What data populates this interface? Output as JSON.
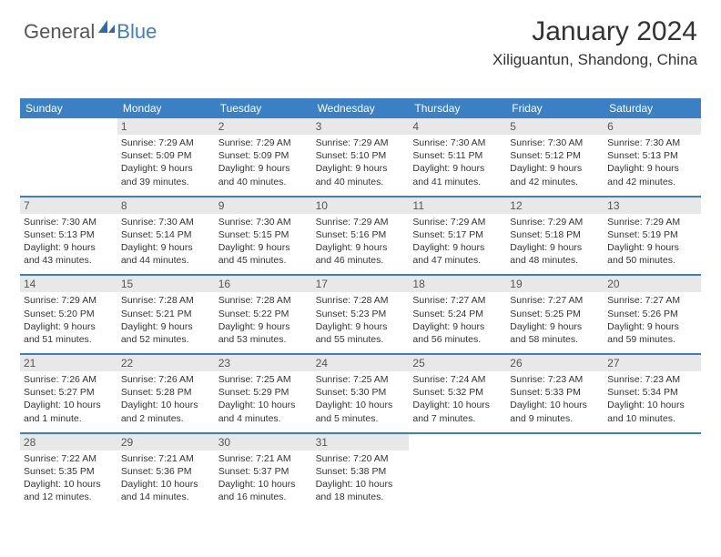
{
  "logo": {
    "general": "General",
    "blue": "Blue"
  },
  "title": "January 2024",
  "subtitle": "Xiliguantun, Shandong, China",
  "colors": {
    "header_bg": "#3b7fc4",
    "header_text": "#ffffff",
    "daynum_bg": "#e8e8e8",
    "text": "#333333",
    "logo_gray": "#555555",
    "logo_blue": "#3b7fc4"
  },
  "day_headers": [
    "Sunday",
    "Monday",
    "Tuesday",
    "Wednesday",
    "Thursday",
    "Friday",
    "Saturday"
  ],
  "start_offset": 1,
  "days": [
    {
      "n": 1,
      "sunrise": "7:29 AM",
      "sunset": "5:09 PM",
      "daylight": "9 hours and 39 minutes."
    },
    {
      "n": 2,
      "sunrise": "7:29 AM",
      "sunset": "5:09 PM",
      "daylight": "9 hours and 40 minutes."
    },
    {
      "n": 3,
      "sunrise": "7:29 AM",
      "sunset": "5:10 PM",
      "daylight": "9 hours and 40 minutes."
    },
    {
      "n": 4,
      "sunrise": "7:30 AM",
      "sunset": "5:11 PM",
      "daylight": "9 hours and 41 minutes."
    },
    {
      "n": 5,
      "sunrise": "7:30 AM",
      "sunset": "5:12 PM",
      "daylight": "9 hours and 42 minutes."
    },
    {
      "n": 6,
      "sunrise": "7:30 AM",
      "sunset": "5:13 PM",
      "daylight": "9 hours and 42 minutes."
    },
    {
      "n": 7,
      "sunrise": "7:30 AM",
      "sunset": "5:13 PM",
      "daylight": "9 hours and 43 minutes."
    },
    {
      "n": 8,
      "sunrise": "7:30 AM",
      "sunset": "5:14 PM",
      "daylight": "9 hours and 44 minutes."
    },
    {
      "n": 9,
      "sunrise": "7:30 AM",
      "sunset": "5:15 PM",
      "daylight": "9 hours and 45 minutes."
    },
    {
      "n": 10,
      "sunrise": "7:29 AM",
      "sunset": "5:16 PM",
      "daylight": "9 hours and 46 minutes."
    },
    {
      "n": 11,
      "sunrise": "7:29 AM",
      "sunset": "5:17 PM",
      "daylight": "9 hours and 47 minutes."
    },
    {
      "n": 12,
      "sunrise": "7:29 AM",
      "sunset": "5:18 PM",
      "daylight": "9 hours and 48 minutes."
    },
    {
      "n": 13,
      "sunrise": "7:29 AM",
      "sunset": "5:19 PM",
      "daylight": "9 hours and 50 minutes."
    },
    {
      "n": 14,
      "sunrise": "7:29 AM",
      "sunset": "5:20 PM",
      "daylight": "9 hours and 51 minutes."
    },
    {
      "n": 15,
      "sunrise": "7:28 AM",
      "sunset": "5:21 PM",
      "daylight": "9 hours and 52 minutes."
    },
    {
      "n": 16,
      "sunrise": "7:28 AM",
      "sunset": "5:22 PM",
      "daylight": "9 hours and 53 minutes."
    },
    {
      "n": 17,
      "sunrise": "7:28 AM",
      "sunset": "5:23 PM",
      "daylight": "9 hours and 55 minutes."
    },
    {
      "n": 18,
      "sunrise": "7:27 AM",
      "sunset": "5:24 PM",
      "daylight": "9 hours and 56 minutes."
    },
    {
      "n": 19,
      "sunrise": "7:27 AM",
      "sunset": "5:25 PM",
      "daylight": "9 hours and 58 minutes."
    },
    {
      "n": 20,
      "sunrise": "7:27 AM",
      "sunset": "5:26 PM",
      "daylight": "9 hours and 59 minutes."
    },
    {
      "n": 21,
      "sunrise": "7:26 AM",
      "sunset": "5:27 PM",
      "daylight": "10 hours and 1 minute."
    },
    {
      "n": 22,
      "sunrise": "7:26 AM",
      "sunset": "5:28 PM",
      "daylight": "10 hours and 2 minutes."
    },
    {
      "n": 23,
      "sunrise": "7:25 AM",
      "sunset": "5:29 PM",
      "daylight": "10 hours and 4 minutes."
    },
    {
      "n": 24,
      "sunrise": "7:25 AM",
      "sunset": "5:30 PM",
      "daylight": "10 hours and 5 minutes."
    },
    {
      "n": 25,
      "sunrise": "7:24 AM",
      "sunset": "5:32 PM",
      "daylight": "10 hours and 7 minutes."
    },
    {
      "n": 26,
      "sunrise": "7:23 AM",
      "sunset": "5:33 PM",
      "daylight": "10 hours and 9 minutes."
    },
    {
      "n": 27,
      "sunrise": "7:23 AM",
      "sunset": "5:34 PM",
      "daylight": "10 hours and 10 minutes."
    },
    {
      "n": 28,
      "sunrise": "7:22 AM",
      "sunset": "5:35 PM",
      "daylight": "10 hours and 12 minutes."
    },
    {
      "n": 29,
      "sunrise": "7:21 AM",
      "sunset": "5:36 PM",
      "daylight": "10 hours and 14 minutes."
    },
    {
      "n": 30,
      "sunrise": "7:21 AM",
      "sunset": "5:37 PM",
      "daylight": "10 hours and 16 minutes."
    },
    {
      "n": 31,
      "sunrise": "7:20 AM",
      "sunset": "5:38 PM",
      "daylight": "10 hours and 18 minutes."
    }
  ],
  "labels": {
    "sunrise": "Sunrise:",
    "sunset": "Sunset:",
    "daylight": "Daylight:"
  }
}
